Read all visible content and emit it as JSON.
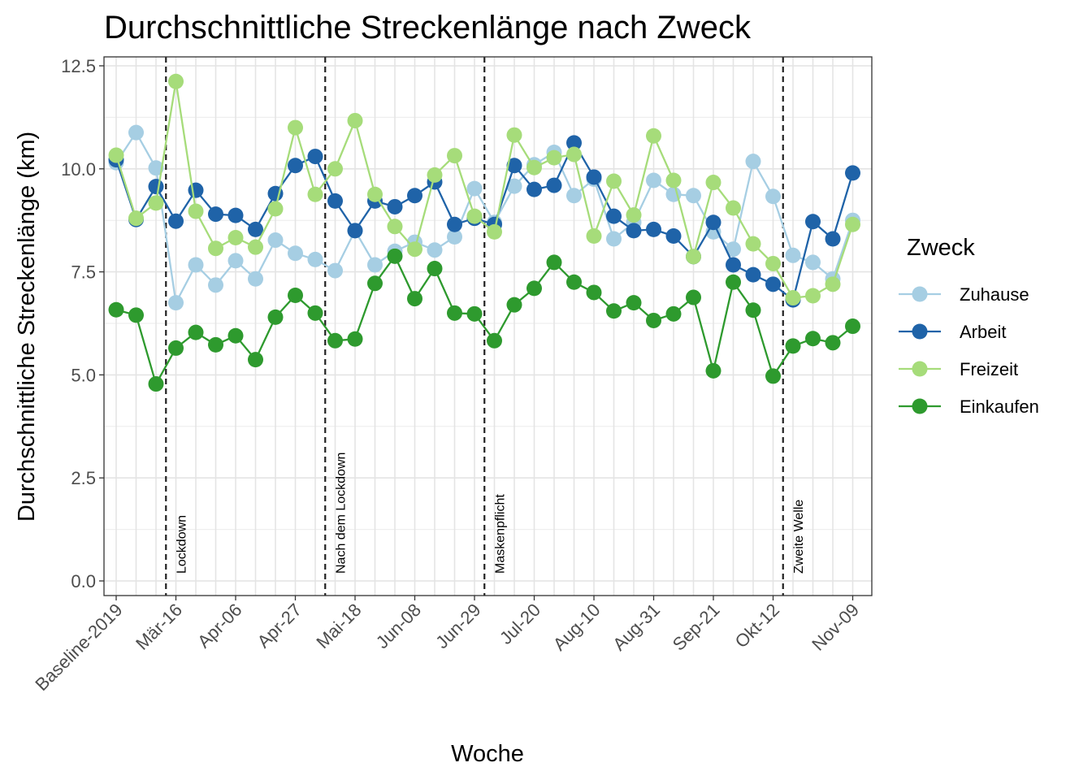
{
  "chart_data": {
    "type": "line",
    "title": "Durchschnittliche Streckenlänge nach Zweck",
    "xlabel": "Woche",
    "ylabel": "Durchschnittliche Streckenlänge (km)",
    "ylim": [
      0,
      12.5
    ],
    "yticks": [
      "0.0",
      "2.5",
      "5.0",
      "7.5",
      "10.0",
      "12.5"
    ],
    "grid": true,
    "legend_title": "Zweck",
    "legend_position": "right",
    "x_tick_labels": [
      "Baseline-2019",
      "Mär-16",
      "Apr-06",
      "Apr-27",
      "Mai-18",
      "Jun-08",
      "Jun-29",
      "Jul-20",
      "Aug-10",
      "Aug-31",
      "Sep-21",
      "Okt-12",
      "Nov-09"
    ],
    "x_tick_positions": [
      0,
      3,
      6,
      9,
      12,
      15,
      18,
      21,
      24,
      27,
      30,
      33,
      37
    ],
    "series": [
      {
        "name": "Zuhause",
        "color": "#a6cee3",
        "values": [
          10.15,
          10.88,
          10.02,
          6.75,
          7.67,
          7.18,
          7.77,
          7.33,
          8.27,
          7.95,
          7.8,
          7.53,
          8.5,
          7.67,
          8.0,
          8.22,
          8.03,
          8.35,
          9.52,
          8.7,
          9.58,
          10.1,
          10.4,
          9.35,
          9.75,
          8.3,
          8.7,
          9.72,
          9.38,
          9.35,
          8.47,
          8.05,
          10.18,
          9.33,
          7.9,
          7.73,
          7.33,
          8.75
        ]
      },
      {
        "name": "Arbeit",
        "color": "#1f63a8",
        "values": [
          10.22,
          8.77,
          9.57,
          8.73,
          9.48,
          8.9,
          8.87,
          8.53,
          9.4,
          10.08,
          10.3,
          9.22,
          8.5,
          9.22,
          9.08,
          9.35,
          9.68,
          8.65,
          8.8,
          8.65,
          10.08,
          9.5,
          9.6,
          10.63,
          9.8,
          8.85,
          8.5,
          8.53,
          8.37,
          7.87,
          8.7,
          7.67,
          7.43,
          7.2,
          6.82,
          8.72,
          8.3,
          9.9
        ]
      },
      {
        "name": "Freizeit",
        "color": "#a6dc7a",
        "values": [
          10.33,
          8.8,
          9.17,
          12.12,
          8.97,
          8.07,
          8.33,
          8.1,
          9.03,
          11.0,
          9.38,
          10.0,
          11.17,
          9.38,
          8.6,
          8.05,
          9.85,
          10.32,
          8.85,
          8.47,
          10.82,
          10.03,
          10.27,
          10.35,
          8.37,
          9.7,
          8.88,
          10.8,
          9.72,
          7.87,
          9.67,
          9.05,
          8.18,
          7.7,
          6.87,
          6.92,
          7.2,
          8.65
        ]
      },
      {
        "name": "Einkaufen",
        "color": "#2e9a2e",
        "values": [
          6.58,
          6.45,
          4.78,
          5.65,
          6.03,
          5.73,
          5.95,
          5.37,
          6.4,
          6.93,
          6.5,
          5.83,
          5.87,
          7.22,
          7.88,
          6.85,
          7.58,
          6.5,
          6.48,
          5.83,
          6.7,
          7.1,
          7.73,
          7.25,
          7.0,
          6.55,
          6.75,
          6.32,
          6.48,
          6.88,
          5.1,
          7.25,
          6.57,
          4.97,
          5.7,
          5.88,
          5.78,
          6.18
        ]
      }
    ],
    "annotations": [
      {
        "label": "Lockdown",
        "x": 2.5
      },
      {
        "label": "Nach dem Lockdown",
        "x": 10.5
      },
      {
        "label": "Maskenpflicht",
        "x": 18.5
      },
      {
        "label": "Zweite Welle",
        "x": 33.5
      }
    ]
  }
}
